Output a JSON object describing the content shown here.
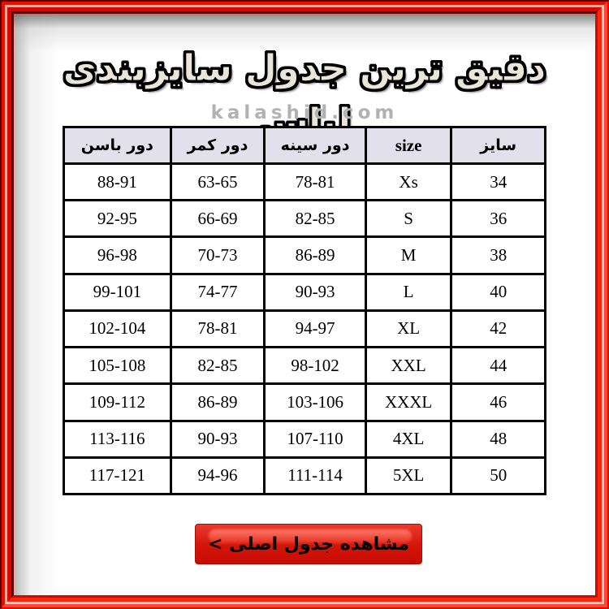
{
  "header": {
    "title": "دقیق ترین جدول سایزبندی لباس",
    "watermark": "kalashid.com"
  },
  "chart_data": {
    "type": "table",
    "title": "دقیق ترین جدول سایزبندی لباس",
    "columns": [
      "سایز",
      "size",
      "دور سینه",
      "دور کمر",
      "دور باسن"
    ],
    "rows": [
      [
        "34",
        "Xs",
        "78-81",
        "63-65",
        "88-91"
      ],
      [
        "36",
        "S",
        "82-85",
        "66-69",
        "92-95"
      ],
      [
        "38",
        "M",
        "86-89",
        "70-73",
        "96-98"
      ],
      [
        "40",
        "L",
        "90-93",
        "74-77",
        "99-101"
      ],
      [
        "42",
        "XL",
        "94-97",
        "78-81",
        "102-104"
      ],
      [
        "44",
        "XXL",
        "98-102",
        "82-85",
        "105-108"
      ],
      [
        "46",
        "XXXL",
        "103-106",
        "86-89",
        "109-112"
      ],
      [
        "48",
        "4XL",
        "107-110",
        "90-93",
        "113-116"
      ],
      [
        "50",
        "5XL",
        "111-114",
        "94-96",
        "117-121"
      ]
    ],
    "layout": {
      "header_background": "#e2e0ea",
      "borders": "solid black grid",
      "direction": "rtl"
    }
  },
  "button": {
    "label": "مشاهده جدول اصلی >"
  },
  "colors": {
    "frame_red": "#e8140a",
    "frame_highlight": "#ffd2c8",
    "header_bg": "#e2e0ea",
    "button_red": "#d31408",
    "watermark_gray": "#b2b2b2",
    "title_fill": "#e9e5d8"
  }
}
